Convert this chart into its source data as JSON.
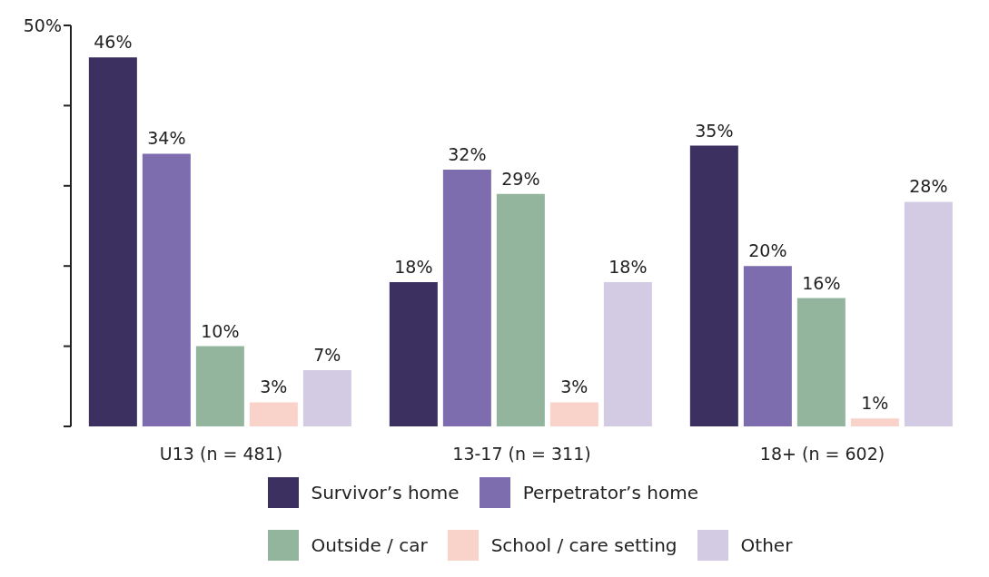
{
  "chart_data": {
    "type": "bar",
    "categories": [
      "U13 (n = 481)",
      "13-17 (n = 311)",
      "18+ (n = 602)"
    ],
    "series": [
      {
        "name": "Survivor’s home",
        "color": "#3b3060",
        "values": [
          46,
          18,
          35
        ],
        "value_labels": [
          "46%",
          "18%",
          "35%"
        ]
      },
      {
        "name": "Perpetrator’s home",
        "color": "#7d6cae",
        "values": [
          34,
          32,
          20
        ],
        "value_labels": [
          "34%",
          "32%",
          "20%"
        ]
      },
      {
        "name": "Outside / car",
        "color": "#93b59d",
        "values": [
          10,
          29,
          16
        ],
        "value_labels": [
          "10%",
          "29%",
          "16%"
        ]
      },
      {
        "name": "School / care setting",
        "color": "#f9d3c9",
        "values": [
          3,
          3,
          1
        ],
        "value_labels": [
          "3%",
          "3%",
          "1%"
        ]
      },
      {
        "name": "Other",
        "color": "#d3cbe4",
        "values": [
          7,
          18,
          28
        ],
        "value_labels": [
          "7%",
          "18%",
          "28%"
        ]
      }
    ],
    "ylim": [
      0,
      50
    ],
    "yticks": [
      {
        "value": 0,
        "label": null
      },
      {
        "value": 10,
        "label": null
      },
      {
        "value": 20,
        "label": null
      },
      {
        "value": 30,
        "label": null
      },
      {
        "value": 40,
        "label": null
      },
      {
        "value": 50,
        "label": "50%"
      }
    ],
    "grid": false,
    "legend": "bottom"
  }
}
